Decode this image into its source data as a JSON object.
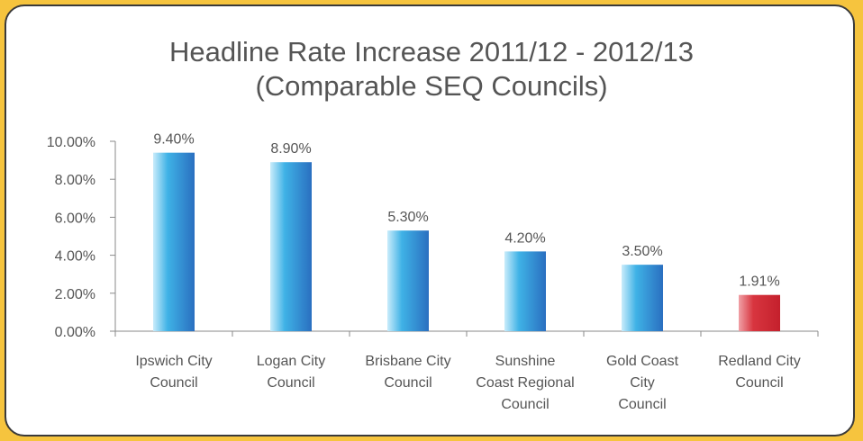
{
  "chart_data": {
    "type": "bar",
    "title": [
      "Headline Rate Increase 2011/12 - 2012/13",
      "(Comparable SEQ Councils)"
    ],
    "xlabel": "",
    "ylabel": "",
    "ylim": [
      0,
      10
    ],
    "yticks": [
      0,
      2,
      4,
      6,
      8,
      10
    ],
    "ytick_labels": [
      "0.00%",
      "2.00%",
      "4.00%",
      "6.00%",
      "8.00%",
      "10.00%"
    ],
    "grid": false,
    "legend": "none",
    "categories": [
      [
        "Ipswich City",
        "Council"
      ],
      [
        "Logan City",
        "Council"
      ],
      [
        "Brisbane City",
        "Council"
      ],
      [
        "Sunshine",
        "Coast Regional",
        "Council"
      ],
      [
        "Gold Coast",
        "City",
        "Council"
      ],
      [
        "Redland City",
        "Council"
      ]
    ],
    "values": [
      9.4,
      8.9,
      5.3,
      4.2,
      3.5,
      1.91
    ],
    "data_labels": [
      "9.40%",
      "8.90%",
      "5.30%",
      "4.20%",
      "3.50%",
      "1.91%"
    ],
    "bar_colors": [
      "blue",
      "blue",
      "blue",
      "blue",
      "blue",
      "red"
    ]
  },
  "colors": {
    "background": "#f6c43e",
    "panel": "#ffffff",
    "border": "#3a3a3a",
    "text": "#555555",
    "axis": "#8a8a8a",
    "blue_light": "#c9ecfb",
    "blue_mid": "#3fb2e6",
    "blue_dark": "#2a6fc0",
    "red_light": "#f0a0a6",
    "red_mid": "#d8353f",
    "red_dark": "#c4202c"
  }
}
